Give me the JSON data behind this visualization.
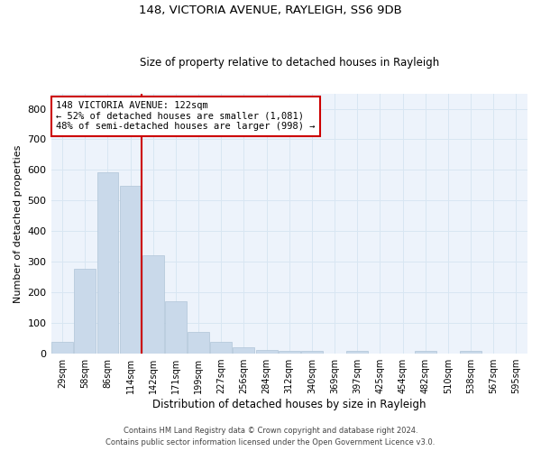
{
  "title1": "148, VICTORIA AVENUE, RAYLEIGH, SS6 9DB",
  "title2": "Size of property relative to detached houses in Rayleigh",
  "xlabel": "Distribution of detached houses by size in Rayleigh",
  "ylabel": "Number of detached properties",
  "categories": [
    "29sqm",
    "58sqm",
    "86sqm",
    "114sqm",
    "142sqm",
    "171sqm",
    "199sqm",
    "227sqm",
    "256sqm",
    "284sqm",
    "312sqm",
    "340sqm",
    "369sqm",
    "397sqm",
    "425sqm",
    "454sqm",
    "482sqm",
    "510sqm",
    "538sqm",
    "567sqm",
    "595sqm"
  ],
  "values": [
    38,
    278,
    593,
    548,
    321,
    170,
    70,
    38,
    20,
    11,
    8,
    8,
    0,
    8,
    0,
    0,
    8,
    0,
    8,
    0,
    0
  ],
  "bar_color": "#c9d9ea",
  "bar_edge_color": "#b0c4d8",
  "grid_color": "#d8e6f2",
  "bg_color": "#edf3fb",
  "vline_x": 3.5,
  "vline_color": "#cc0000",
  "annotation_text": "148 VICTORIA AVENUE: 122sqm\n← 52% of detached houses are smaller (1,081)\n48% of semi-detached houses are larger (998) →",
  "annotation_box_color": "#ffffff",
  "annotation_box_edge_color": "#cc0000",
  "footer1": "Contains HM Land Registry data © Crown copyright and database right 2024.",
  "footer2": "Contains public sector information licensed under the Open Government Licence v3.0.",
  "ylim": [
    0,
    850
  ],
  "yticks": [
    0,
    100,
    200,
    300,
    400,
    500,
    600,
    700,
    800
  ]
}
